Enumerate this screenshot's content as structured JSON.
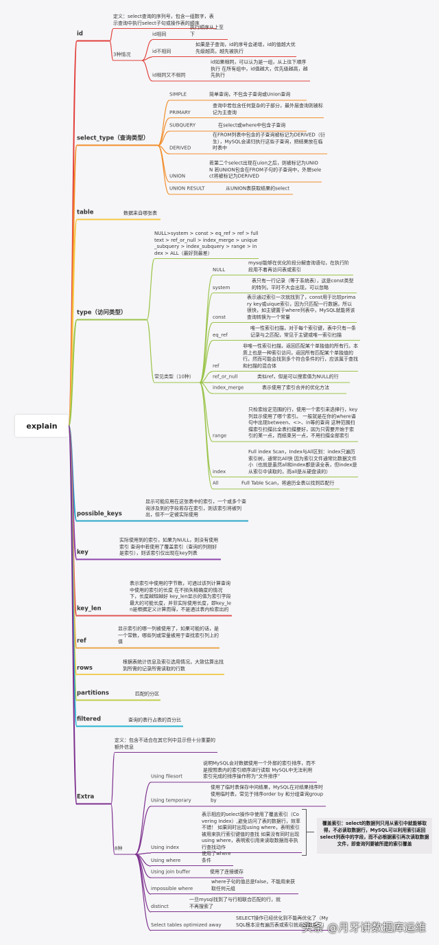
{
  "root": "explain",
  "branch_colors": {
    "id": "#e2403c",
    "select_type": "#f28e2b",
    "table": "#f6c945",
    "type": "#9bc44a",
    "possible_keys": "#2ba8c8",
    "key": "#8e44ad",
    "key_len": "#e05656",
    "ref": "#eaa64c",
    "rows": "#f0cd58",
    "partitions": "#c3cf4c",
    "filtered": "#27b3d1",
    "extra": "#7d2f8e"
  },
  "id": {
    "label": "id",
    "definition": "定义：select查询的序列号，包含一组数字，表示查询中执行select子句或操作表的顺序",
    "cases_label": "3种情况",
    "cases": [
      {
        "label": "id相同",
        "desc": "执行顺序从上至下"
      },
      {
        "label": "id不相同",
        "desc": "如果是子查询，id的序号会递增，id的值越大优先级越高，越先被执行"
      },
      {
        "label": "id相同又不相同",
        "desc": "id如果相同，可以认为是一组，从上往下顺序执行 在所有组中，id值越大，优先级越高，越先执行"
      }
    ]
  },
  "select_type": {
    "label": "select_type（查询类型）",
    "items": [
      {
        "label": "SIMPLE",
        "desc": "简单查询，不包含子查询或Union查询"
      },
      {
        "label": "PRIMARY",
        "desc": "查询中若包含任何复杂的子部分，最外层查询则被标记为主查询"
      },
      {
        "label": "SUBQUERY",
        "desc": "在select或where中包含子查询"
      },
      {
        "label": "DERIVED",
        "desc": "在FROM列表中包含的子查询被标记为DERIVED（衍生），MySQL会递归执行这些子查询，把结果放在临时表中"
      },
      {
        "label": "UNION",
        "desc": "若第二个select出现在uion之后，则被标记为UNION 若UNION包含在FROM子句的子查询中，外层select将被标记为DERIVED"
      },
      {
        "label": "UNION RESULT",
        "desc": "从UNION表获取结果的select"
      }
    ]
  },
  "table": {
    "label": "table",
    "desc": "数据来自哪张表"
  },
  "type": {
    "label": "type（访问类型）",
    "order": "NULL>system > const > eq_ref > ref > fulltext > ref_or_null > index_merge > unique_subquery > index_subquery > range > index > ALL（最好到最差）",
    "common_label": "常见类型（10种）",
    "items": [
      {
        "label": "NULL",
        "desc": "mysql能够在优化阶段分解查询语句，在执行阶段用不着再访问表或索引"
      },
      {
        "label": "system",
        "desc": "表只有一行记录（等于系统表），这是const类型的特列，平时不大会出现，可以忽略"
      },
      {
        "label": "const",
        "desc": "表示通过索引一次就找到了，const用于比较primary key或uique索引，因为只匹配一行数据，所以很快，如主键置于where列表中，MySQL就能将该查询转换为一个常量"
      },
      {
        "label": "eq_ref",
        "desc": "唯一性索引扫描，对于每个索引键，表中只有一条记录与之匹配，常见于主键或唯一索引扫描"
      },
      {
        "label": "ref",
        "desc": "非唯一性索引扫描，返回匹配某个单独值的所有行。本质上也是一种索引访问，返回所有匹配某个单独值的行。然而可能会找到多个符合条件的行，应该属于查找和扫描的混合体"
      },
      {
        "label": "ref_or_null",
        "desc": "类似ref，但是可以搜索值为NULL的行"
      },
      {
        "label": "index_merge",
        "desc": "表示使用了索引合并的优化方法"
      },
      {
        "label": "range",
        "desc": "只检索给定范围的行，使用一个索引来选择行，key列显示使用了哪个索引。 一般就是在你的where语句中出现between、<>、in等的查询 这种范围扫描索引扫描比全表扫描要好，因为只需要开始于索引的某一点，而结束另一点，不用扫描全部索引"
      },
      {
        "label": "index",
        "desc": "Full index Scan，Index与All区别：index只遍历索引树，通常比All快 因为索引文件通常比数据文件小（也就是虽然all和index都是读全表，但index是从索引中读取的，而all是从硬盘读的）"
      },
      {
        "label": "All",
        "desc": "Full Table Scan，将遍历全表以找到匹配行"
      }
    ]
  },
  "possible_keys": {
    "label": "possible_keys",
    "desc": "显示可能应用在这张表中的索引，一个或多个查询涉及到的字段若存在索引，则该索引将被列出，但不一定被实际使用"
  },
  "key": {
    "label": "key",
    "desc": "实际使用到的索引，如果为NULL，则没有使用索引 查询中若使用了覆盖索引（查询的列刚好是索引），则该索引仅出现在key列表"
  },
  "key_len": {
    "label": "key_len",
    "desc": "表示索引中使用的字节数，可通过该列计算查询中使用的索引的长度 在不损失精确度的情况下，长度越短越好 key_len显示的值为索引字段最大的可能长度，并非实际使用长度，即key_len是根据定义计算而得，不是通过表内检索出的"
  },
  "ref": {
    "label": "ref",
    "desc": "显示索引的哪一列被使用了，如果可能的话，是一个常数，哪些列或常量被用于查找索引列上的值"
  },
  "rows": {
    "label": "rows",
    "desc": "根据表统计信息及索引选用情况，大致估算出找到所需的记录所需读取的行数"
  },
  "partitions": {
    "label": "partitions",
    "desc": "匹配的分区"
  },
  "filtered": {
    "label": "filtered",
    "desc": "查询的表行占表的百分比"
  },
  "extra": {
    "label": "Extra",
    "definition": "定义：包含不适合在其它列中显示但十分重要的额外信息",
    "cases_label": "8种",
    "items": [
      {
        "label": "Using filesort",
        "desc": "说明MySQL会对数据使用一个外部的索引排序，而不是按照表内的索引顺序进行读取 MySQL中无法利用索引完成的排序操作称为“文件排序”"
      },
      {
        "label": "Using temporary",
        "desc": "使用了临时表保存中间结果，MySQL在对结果排序时使用临时表，常见于排序order by 和分组查询group by"
      },
      {
        "label": "Using index",
        "desc": "表示相应的select操作中使用了覆盖索引（Covering Index）,避免访问了表的数据行，效率不错！ 如果同时出现using where，表明索引被用来执行索引键值的查找 如果没有同时出现using where，表明索引用来读取数据而非执行查找动作"
      },
      {
        "label": "Using where",
        "desc": "使用了where条件"
      },
      {
        "label": "Using join buffer",
        "desc": "使用了连接缓存"
      },
      {
        "label": "impossible where",
        "desc": "where子句的值总是false，不能用来获取任何元组"
      },
      {
        "label": "distinct",
        "desc": "一旦mysql找到了与行相联合匹配的行，就不再搜索了"
      },
      {
        "label": "Select tables optimized away",
        "desc": "SELECT操作已经优化到不能再优化了（MySQL根本没有遍历表或索引就返回数据了）"
      }
    ],
    "note": "覆盖索引：select的数据列只用从索引中就能够取得，不必读取数据行，MySQL可以利用索引返回select列表中的字段，而不必根据索引再次读取数据文件，即查询列要被所建的索引覆盖"
  },
  "watermark": "头条 @月牙讲数据库运维"
}
